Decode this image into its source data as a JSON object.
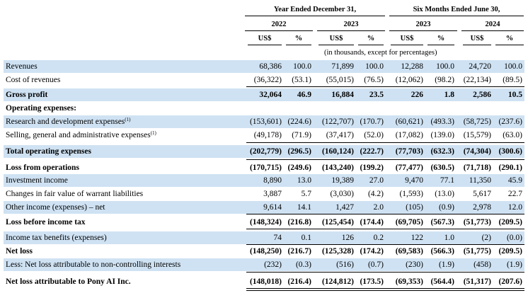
{
  "header": {
    "period_groups": [
      "Year Ended December 31,",
      "Six Months Ended June 30,"
    ],
    "years": [
      "2022",
      "2023",
      "2023",
      "2024"
    ],
    "col_currency": "US$",
    "col_percent": "%",
    "units_note": "(in thousands, except for percentages)"
  },
  "rows": [
    {
      "label": "Revenues",
      "values": [
        "68,386",
        "100.0",
        "71,899",
        "100.0",
        "12,288",
        "100.0",
        "24,720",
        "100.0"
      ]
    },
    {
      "label": "Cost of revenues",
      "values": [
        "(36,322)",
        "(53.1)",
        "(55,015)",
        "(76.5)",
        "(12,062)",
        "(98.2)",
        "(22,134)",
        "(89.5)"
      ]
    },
    {
      "label": "Gross profit",
      "values": [
        "32,064",
        "46.9",
        "16,884",
        "23.5",
        "226",
        "1.8",
        "2,586",
        "10.5"
      ]
    },
    {
      "label": "Operating expenses:",
      "values": []
    },
    {
      "label": "Research and development expenses",
      "footnote": "(1)",
      "values": [
        "(153,601)",
        "(224.6)",
        "(122,707)",
        "(170.7)",
        "(60,621)",
        "(493.3)",
        "(58,725)",
        "(237.6)"
      ]
    },
    {
      "label": "Selling, general and administrative expenses",
      "footnote": "(1)",
      "values": [
        "(49,178)",
        "(71.9)",
        "(37,417)",
        "(52.0)",
        "(17,082)",
        "(139.0)",
        "(15,579)",
        "(63.0)"
      ]
    },
    {
      "label": "Total operating expenses",
      "values": [
        "(202,779)",
        "(296.5)",
        "(160,124)",
        "(222.7)",
        "(77,703)",
        "(632.3)",
        "(74,304)",
        "(300.6)"
      ]
    },
    {
      "label": "Loss from operations",
      "values": [
        "(170,715)",
        "(249.6)",
        "(143,240)",
        "(199.2)",
        "(77,477)",
        "(630.5)",
        "(71,718)",
        "(290.1)"
      ]
    },
    {
      "label": "Investment income",
      "values": [
        "8,890",
        "13.0",
        "19,389",
        "27.0",
        "9,470",
        "77.1",
        "11,350",
        "45.9"
      ]
    },
    {
      "label": "Changes in fair value of warrant liabilities",
      "values": [
        "3,887",
        "5.7",
        "(3,030)",
        "(4.2)",
        "(1,593)",
        "(13.0)",
        "5,617",
        "22.7"
      ]
    },
    {
      "label": "Other income (expenses) – net",
      "values": [
        "9,614",
        "14.1",
        "1,427",
        "2.0",
        "(105)",
        "(0.9)",
        "2,978",
        "12.0"
      ]
    },
    {
      "label": "Loss before income tax",
      "values": [
        "(148,324)",
        "(216.8)",
        "(125,454)",
        "(174.4)",
        "(69,705)",
        "(567.3)",
        "(51,773)",
        "(209.5)"
      ]
    },
    {
      "label": "Income tax benefits (expenses)",
      "values": [
        "74",
        "0.1",
        "126",
        "0.2",
        "122",
        "1.0",
        "(2)",
        "(0.0)"
      ]
    },
    {
      "label": "Net loss",
      "values": [
        "(148,250)",
        "(216.7)",
        "(125,328)",
        "(174.2)",
        "(69,583)",
        "(566.3)",
        "(51,775)",
        "(209.5)"
      ]
    },
    {
      "label": "Less: Net loss attributable to non-controlling interests",
      "values": [
        "(232)",
        "(0.3)",
        "(516)",
        "(0.7)",
        "(230)",
        "(1.9)",
        "(458)",
        "(1.9)"
      ]
    },
    {
      "label": "Net loss attributable to Pony AI Inc.",
      "values": [
        "(148,018)",
        "(216.4)",
        "(124,812)",
        "(173.5)",
        "(69,353)",
        "(564.4)",
        "(51,317)",
        "(207.6)"
      ]
    }
  ]
}
